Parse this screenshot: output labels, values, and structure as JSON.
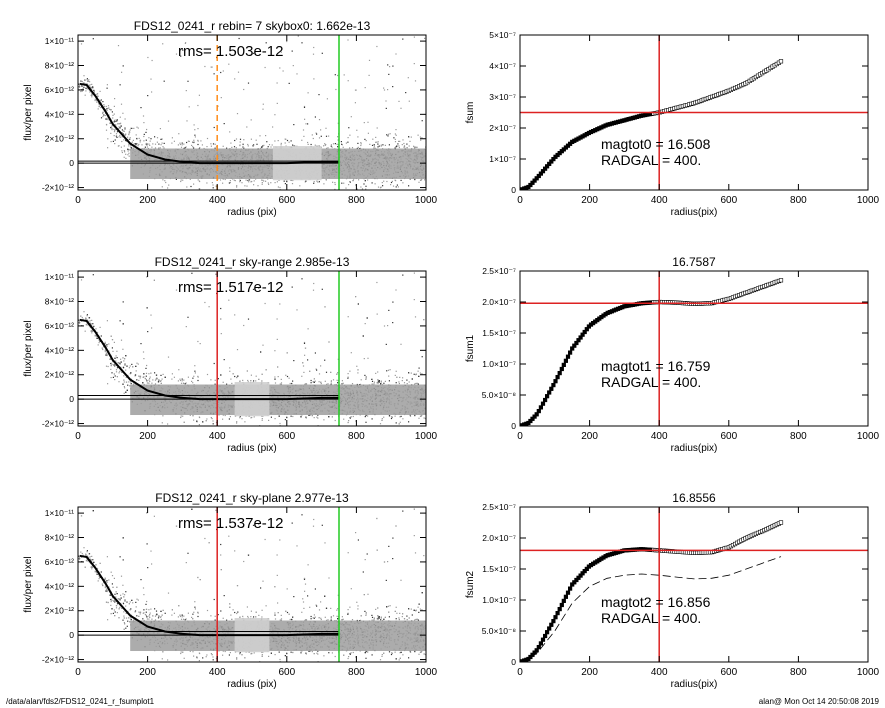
{
  "footer": {
    "path": "/data/alan/fds2/FDS12_0241_r_fsumplot1",
    "stamp": "alan@  Mon Oct 14 20:50:08 2019"
  },
  "chart_data": [
    {
      "type": "scatter",
      "title": "FDS12_0241_r rebin= 7    skybox0:  1.662e-13",
      "annotation": "rms= 1.503e-12",
      "xlabel": "radius (pix)",
      "ylabel": "flux/per pixel",
      "xlim": [
        0,
        1000
      ],
      "ylim": [
        -2.2e-12,
        1.05e-11
      ],
      "xticks": [
        0,
        200,
        400,
        600,
        800,
        1000
      ],
      "xtick_labels": [
        "0",
        "200",
        "400",
        "600",
        "800",
        "1000"
      ],
      "yticks": [
        -2e-12,
        0,
        2e-12,
        4e-12,
        6e-12,
        8e-12,
        1e-11
      ],
      "ytick_labels": [
        "-2×10⁻¹²",
        "0",
        "2×10⁻¹²",
        "4×10⁻¹²",
        "6×10⁻¹²",
        "8×10⁻¹²",
        "1×10⁻¹¹"
      ],
      "profile": {
        "x": [
          5,
          25,
          50,
          80,
          100,
          150,
          200,
          250,
          300,
          350,
          400,
          500,
          600,
          700,
          750
        ],
        "y": [
          6.5e-12,
          6.4e-12,
          5.5e-12,
          4.2e-12,
          3.2e-12,
          1.6e-12,
          7e-13,
          3e-13,
          1e-13,
          0,
          0,
          0,
          0,
          1e-13,
          1e-13
        ]
      },
      "hlines": [
        {
          "y": 1.662e-13,
          "color": "#000000"
        },
        {
          "y": 0,
          "color": "#000000"
        }
      ],
      "vlines": [
        {
          "x": 400,
          "color": "#ff8c1a",
          "dashed": true
        },
        {
          "x": 750,
          "color": "#22cc22"
        }
      ],
      "grey_band": {
        "xmin": 560,
        "xmax": 700
      }
    },
    {
      "type": "line",
      "title": "",
      "annotations": [
        "magtot0 =  16.508",
        "RADGAL =    400."
      ],
      "xlabel": "radius(pix)",
      "ylabel": "fsum",
      "xlim": [
        0,
        1000
      ],
      "ylim": [
        0,
        5e-07
      ],
      "xticks": [
        0,
        200,
        400,
        600,
        800,
        1000
      ],
      "xtick_labels": [
        "0",
        "200",
        "400",
        "600",
        "800",
        "1000"
      ],
      "yticks": [
        0,
        1e-07,
        2e-07,
        3e-07,
        4e-07,
        5e-07
      ],
      "ytick_labels": [
        "0",
        "1×10⁻⁷",
        "2×10⁻⁷",
        "3×10⁻⁷",
        "4×10⁻⁷",
        "5×10⁻⁷"
      ],
      "series": [
        {
          "x": [
            0,
            25,
            50,
            100,
            150,
            200,
            250,
            300,
            350,
            400,
            450,
            500,
            550,
            600,
            650,
            700,
            750
          ],
          "y": [
            0,
            1e-08,
            4e-08,
            1.05e-07,
            1.55e-07,
            1.85e-07,
            2.1e-07,
            2.25e-07,
            2.4e-07,
            2.5e-07,
            2.65e-07,
            2.8e-07,
            3e-07,
            3.2e-07,
            3.45e-07,
            3.8e-07,
            4.15e-07
          ]
        }
      ],
      "hline": {
        "y": 2.5e-07,
        "color": "#dd2222"
      },
      "vline": {
        "x": 400,
        "color": "#dd2222"
      }
    },
    {
      "type": "scatter",
      "title": "FDS12_0241_r sky-range  2.985e-13",
      "annotation": "rms= 1.517e-12",
      "xlabel": "radius (pix)",
      "ylabel": "flux/per pixel",
      "xlim": [
        0,
        1000
      ],
      "ylim": [
        -2.2e-12,
        1.05e-11
      ],
      "xticks": [
        0,
        200,
        400,
        600,
        800,
        1000
      ],
      "xtick_labels": [
        "0",
        "200",
        "400",
        "600",
        "800",
        "1000"
      ],
      "yticks": [
        -2e-12,
        0,
        2e-12,
        4e-12,
        6e-12,
        8e-12,
        1e-11
      ],
      "ytick_labels": [
        "-2×10⁻¹²",
        "0",
        "2×10⁻¹²",
        "4×10⁻¹²",
        "6×10⁻¹²",
        "8×10⁻¹²",
        "1×10⁻¹¹"
      ],
      "profile": {
        "x": [
          5,
          25,
          50,
          80,
          100,
          150,
          200,
          250,
          300,
          350,
          400,
          500,
          600,
          700,
          750
        ],
        "y": [
          6.5e-12,
          6.4e-12,
          5.5e-12,
          4.2e-12,
          3.2e-12,
          1.6e-12,
          7e-13,
          3e-13,
          1e-13,
          0,
          0,
          0,
          0,
          1e-13,
          1e-13
        ]
      },
      "hlines": [
        {
          "y": 2.985e-13,
          "color": "#000000"
        },
        {
          "y": 0,
          "color": "#000000"
        }
      ],
      "vlines": [
        {
          "x": 400,
          "color": "#dd2222"
        },
        {
          "x": 750,
          "color": "#22cc22"
        }
      ],
      "grey_band": {
        "xmin": 450,
        "xmax": 550
      }
    },
    {
      "type": "line",
      "title": "16.7587",
      "annotations": [
        "magtot1 =  16.759",
        "RADGAL =    400."
      ],
      "xlabel": "radius(pix)",
      "ylabel": "fsum1",
      "xlim": [
        0,
        1000
      ],
      "ylim": [
        0,
        2.5e-07
      ],
      "xticks": [
        0,
        200,
        400,
        600,
        800,
        1000
      ],
      "xtick_labels": [
        "0",
        "200",
        "400",
        "600",
        "800",
        "1000"
      ],
      "yticks": [
        0,
        5e-08,
        1e-07,
        1.5e-07,
        2e-07,
        2.5e-07
      ],
      "ytick_labels": [
        "0",
        "5.0×10⁻⁸",
        "1.0×10⁻⁷",
        "1.5×10⁻⁷",
        "2.0×10⁻⁷",
        "2.5×10⁻⁷"
      ],
      "series": [
        {
          "x": [
            0,
            25,
            50,
            100,
            150,
            200,
            250,
            300,
            350,
            400,
            450,
            500,
            550,
            600,
            650,
            700,
            750
          ],
          "y": [
            0,
            5e-09,
            2e-08,
            7e-08,
            1.25e-07,
            1.62e-07,
            1.82e-07,
            1.93e-07,
            1.98e-07,
            2e-07,
            1.99e-07,
            1.97e-07,
            1.98e-07,
            2.05e-07,
            2.15e-07,
            2.25e-07,
            2.35e-07
          ]
        }
      ],
      "hline": {
        "y": 1.98e-07,
        "color": "#dd2222"
      },
      "vline": {
        "x": 400,
        "color": "#dd2222"
      }
    },
    {
      "type": "scatter",
      "title": "FDS12_0241_r sky-plane  2.977e-13",
      "annotation": "rms= 1.537e-12",
      "xlabel": "radius (pix)",
      "ylabel": "flux/per pixel",
      "xlim": [
        0,
        1000
      ],
      "ylim": [
        -2.2e-12,
        1.05e-11
      ],
      "xticks": [
        0,
        200,
        400,
        600,
        800,
        1000
      ],
      "xtick_labels": [
        "0",
        "200",
        "400",
        "600",
        "800",
        "1000"
      ],
      "yticks": [
        -2e-12,
        0,
        2e-12,
        4e-12,
        6e-12,
        8e-12,
        1e-11
      ],
      "ytick_labels": [
        "-2×10⁻¹²",
        "0",
        "2×10⁻¹²",
        "4×10⁻¹²",
        "6×10⁻¹²",
        "8×10⁻¹²",
        "1×10⁻¹¹"
      ],
      "profile": {
        "x": [
          5,
          25,
          50,
          80,
          100,
          150,
          200,
          250,
          300,
          350,
          400,
          500,
          600,
          700,
          750
        ],
        "y": [
          6.5e-12,
          6.4e-12,
          5.5e-12,
          4.2e-12,
          3.2e-12,
          1.6e-12,
          7e-13,
          3e-13,
          1e-13,
          0,
          0,
          0,
          0,
          1e-13,
          1e-13
        ]
      },
      "hlines": [
        {
          "y": 2.977e-13,
          "color": "#000000"
        },
        {
          "y": 0,
          "color": "#000000"
        }
      ],
      "vlines": [
        {
          "x": 400,
          "color": "#dd2222"
        },
        {
          "x": 750,
          "color": "#22cc22"
        }
      ],
      "grey_band": {
        "xmin": 450,
        "xmax": 550
      }
    },
    {
      "type": "line",
      "title": "16.8556",
      "annotations": [
        "magtot2 =  16.856",
        "RADGAL =    400."
      ],
      "xlabel": "radius(pix)",
      "ylabel": "fsum2",
      "xlim": [
        0,
        1000
      ],
      "ylim": [
        0,
        2.5e-07
      ],
      "xticks": [
        0,
        200,
        400,
        600,
        800,
        1000
      ],
      "xtick_labels": [
        "0",
        "200",
        "400",
        "600",
        "800",
        "1000"
      ],
      "yticks": [
        0,
        5e-08,
        1e-07,
        1.5e-07,
        2e-07,
        2.5e-07
      ],
      "ytick_labels": [
        "0",
        "5.0×10⁻⁸",
        "1.0×10⁻⁷",
        "1.5×10⁻⁷",
        "2.0×10⁻⁷",
        "2.5×10⁻⁷"
      ],
      "series": [
        {
          "x": [
            0,
            25,
            50,
            100,
            150,
            200,
            250,
            300,
            350,
            400,
            450,
            500,
            550,
            600,
            650,
            700,
            750
          ],
          "y": [
            0,
            5e-09,
            2e-08,
            7e-08,
            1.25e-07,
            1.55e-07,
            1.72e-07,
            1.8e-07,
            1.82e-07,
            1.8e-07,
            1.78e-07,
            1.76e-07,
            1.77e-07,
            1.85e-07,
            2e-07,
            2.12e-07,
            2.25e-07
          ]
        },
        {
          "x": [
            0,
            25,
            50,
            100,
            150,
            200,
            250,
            300,
            350,
            400,
            450,
            500,
            550,
            600,
            650,
            700,
            750
          ],
          "y": [
            0,
            5e-09,
            1.5e-08,
            5e-08,
            9.5e-08,
            1.22e-07,
            1.35e-07,
            1.4e-07,
            1.42e-07,
            1.4e-07,
            1.37e-07,
            1.34e-07,
            1.35e-07,
            1.4e-07,
            1.5e-07,
            1.6e-07,
            1.7e-07
          ]
        }
      ],
      "hline": {
        "y": 1.8e-07,
        "color": "#dd2222"
      },
      "vline": {
        "x": 400,
        "color": "#dd2222"
      }
    }
  ]
}
